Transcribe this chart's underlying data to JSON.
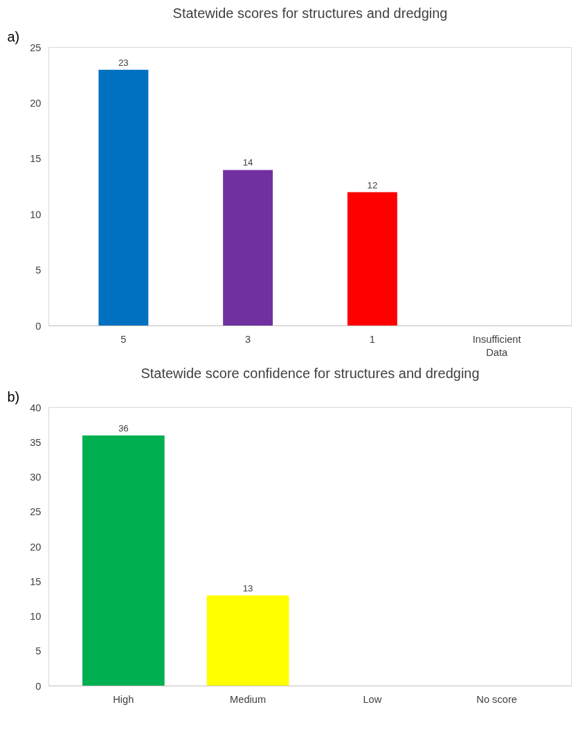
{
  "chart_data": [
    {
      "type": "bar",
      "title": "Statewide scores for structures and dredging",
      "annotations": [
        "a)"
      ],
      "categories": [
        "5",
        "3",
        "1",
        "Insufficient Data"
      ],
      "values": [
        23,
        14,
        12,
        null
      ],
      "colors": [
        "#0070c0",
        "#7030a0",
        "#ff0000",
        null
      ],
      "ylim": [
        0,
        25
      ],
      "yticks": [
        0,
        5,
        10,
        15,
        20,
        25
      ],
      "data_labels": true,
      "grid": false
    },
    {
      "type": "bar",
      "title": "Statewide score confidence for structures and dredging",
      "annotations": [
        "b)"
      ],
      "categories": [
        "High",
        "Medium",
        "Low",
        "No score"
      ],
      "values": [
        36,
        13,
        null,
        null
      ],
      "colors": [
        "#00b050",
        "#ffff00",
        null,
        null
      ],
      "ylim": [
        0,
        40
      ],
      "yticks": [
        0,
        5,
        10,
        15,
        20,
        25,
        30,
        35,
        40
      ],
      "data_labels": true,
      "grid": false
    }
  ]
}
